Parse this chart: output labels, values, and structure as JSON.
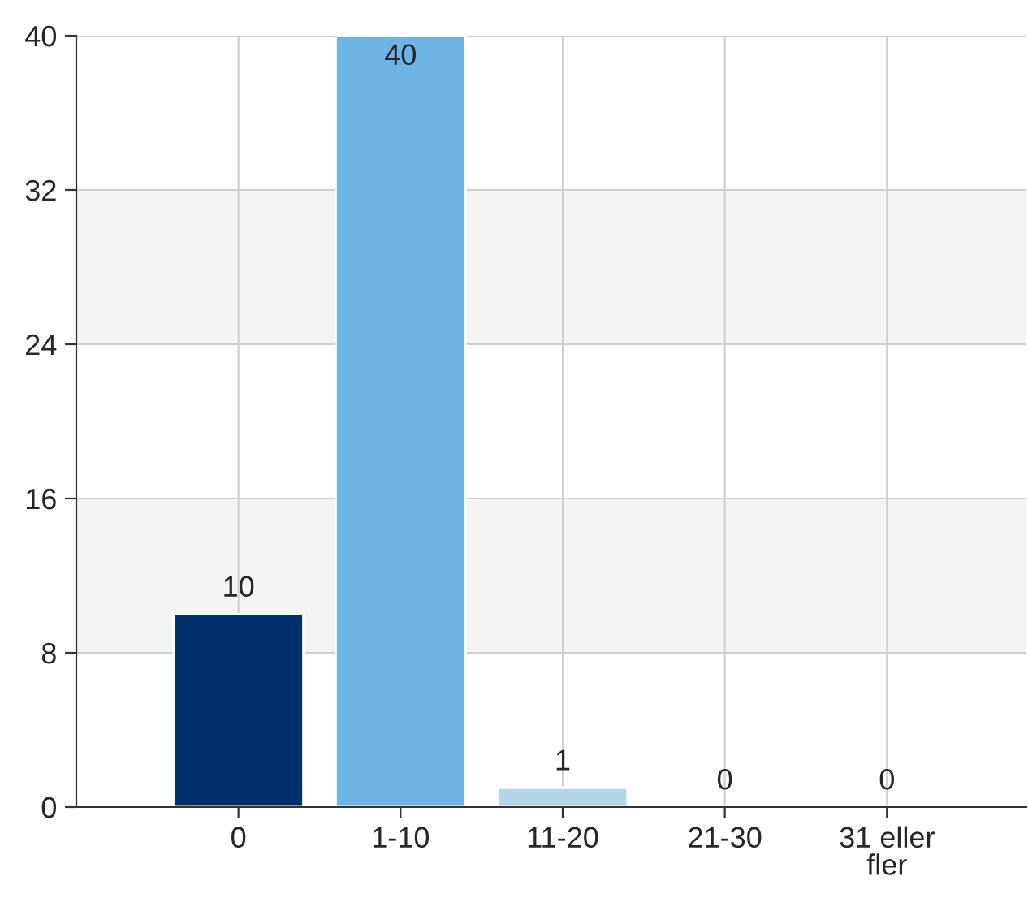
{
  "chart_data": {
    "type": "bar",
    "categories": [
      "0",
      "1-10",
      "11-20",
      "21-30",
      "31 eller\nfler"
    ],
    "values": [
      10,
      40,
      1,
      0,
      0
    ],
    "colors": [
      "#00306b",
      "#6db3e4",
      "#b4d4e8",
      "#b4d4e8",
      "#b4d4e8"
    ],
    "ylim": [
      0,
      40
    ],
    "yticks": [
      0,
      8,
      16,
      24,
      32,
      40
    ],
    "grid": true,
    "data_labels": true,
    "bands": [
      {
        "axis": "y",
        "from": 8,
        "to": 16,
        "color": "#f4f4f4"
      },
      {
        "axis": "y",
        "from": 24,
        "to": 32,
        "color": "#f4f4f4"
      }
    ]
  }
}
